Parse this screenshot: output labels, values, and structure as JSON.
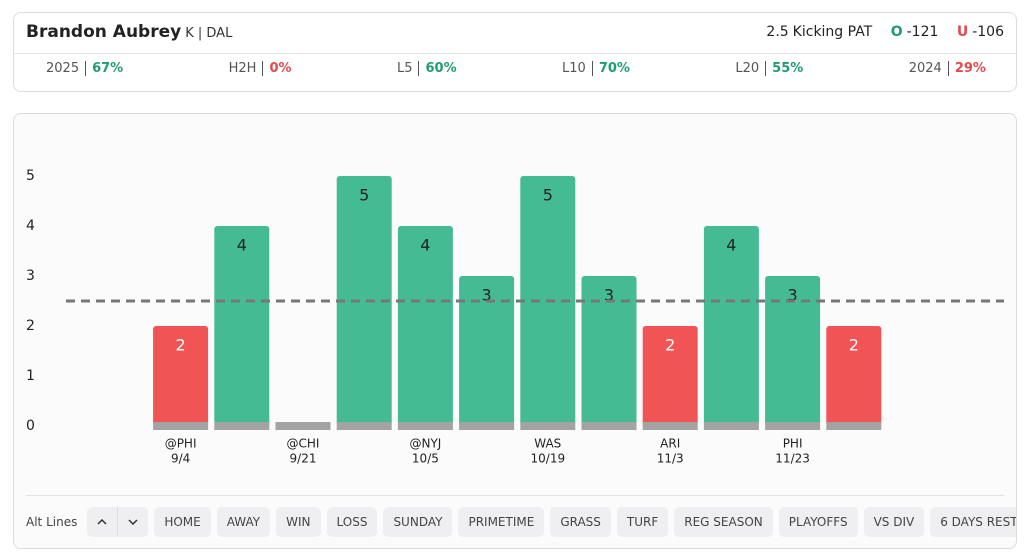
{
  "header": {
    "player": "Brandon Aubrey",
    "position_team": "K | DAL",
    "line": 2.5,
    "market": "Kicking PAT",
    "over_symbol": "O",
    "over_odds": "-121",
    "under_symbol": "U",
    "under_odds": "-106"
  },
  "stats": [
    {
      "label": "2025",
      "value": "67%",
      "color": "#1e9e6e"
    },
    {
      "label": "H2H",
      "value": "0%",
      "color": "#e5484d"
    },
    {
      "label": "L5",
      "value": "60%",
      "color": "#1e9e6e"
    },
    {
      "label": "L10",
      "value": "70%",
      "color": "#1e9e6e"
    },
    {
      "label": "L20",
      "value": "55%",
      "color": "#1e9e6e"
    },
    {
      "label": "2024",
      "value": "29%",
      "color": "#e5484d"
    }
  ],
  "chart_data": {
    "type": "bar",
    "categories": [
      "@PHI",
      null,
      "@CHI",
      null,
      "@NYJ",
      null,
      "WAS",
      null,
      "ARI",
      null,
      "PHI",
      null
    ],
    "dates": [
      "9/4",
      null,
      "9/21",
      null,
      "10/5",
      null,
      "10/19",
      null,
      "11/3",
      null,
      "11/23",
      null
    ],
    "values": [
      2,
      4,
      0,
      5,
      4,
      3,
      5,
      3,
      2,
      4,
      3,
      2
    ],
    "over_color": "#45bb94",
    "under_color": "#f05454",
    "ylim": [
      0,
      5
    ],
    "yticks": [
      0,
      1,
      2,
      3,
      4,
      5
    ]
  },
  "filters": {
    "label": "Alt Lines",
    "buttons": [
      "HOME",
      "AWAY",
      "WIN",
      "LOSS",
      "SUNDAY",
      "PRIMETIME",
      "GRASS",
      "TURF",
      "REG SEASON",
      "PLAYOFFS",
      "VS DIV",
      "6 DAYS REST"
    ]
  }
}
